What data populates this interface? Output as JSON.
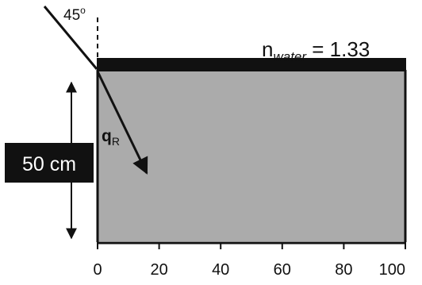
{
  "angle_label": "45",
  "angle_degree_mark": "o",
  "refraction_label": "q",
  "refraction_subscript": "R",
  "index": {
    "n": "n",
    "subscript": "water",
    "rest": " = 1.33"
  },
  "depth_label": "50 cm",
  "axis_ticks": [
    "0",
    "20",
    "40",
    "60",
    "80",
    "100"
  ],
  "colors": {
    "water": "#ababab",
    "ink": "#111111",
    "label_box": "#111111",
    "label_text": "#ffffff"
  }
}
